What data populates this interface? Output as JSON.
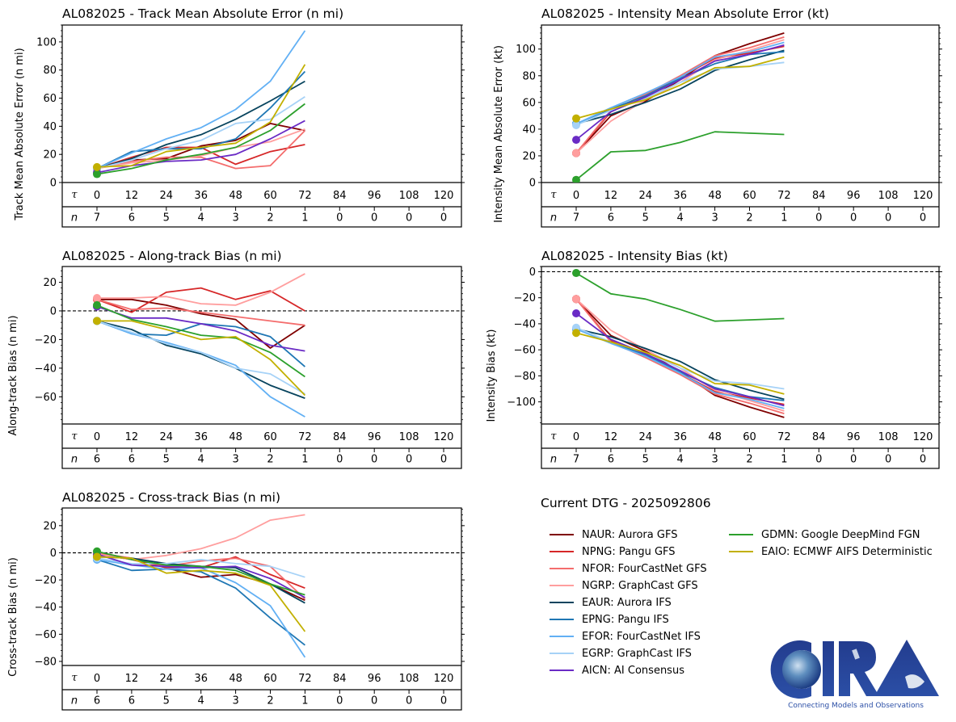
{
  "figure": {
    "storm_id": "AL082025",
    "dtg_label": "Current DTG - 2025092806"
  },
  "colors": {
    "NAUR": "#7f0000",
    "NPNG": "#d62728",
    "NFOR": "#f46d6d",
    "NGRP": "#ff9e9e",
    "EAUR": "#08445e",
    "EPNG": "#1f77b4",
    "EFOR": "#62b0f4",
    "EGRP": "#a6d2f7",
    "AICN": "#6a2bc5",
    "GDMN": "#2ca02c",
    "EAIO": "#c2b000"
  },
  "legend": {
    "items": [
      {
        "id": "NAUR",
        "label": "NAUR: Aurora GFS"
      },
      {
        "id": "NPNG",
        "label": "NPNG: Pangu GFS"
      },
      {
        "id": "NFOR",
        "label": "NFOR: FourCastNet GFS"
      },
      {
        "id": "NGRP",
        "label": "NGRP: GraphCast GFS"
      },
      {
        "id": "EAUR",
        "label": "EAUR: Aurora IFS"
      },
      {
        "id": "EPNG",
        "label": "EPNG: Pangu IFS"
      },
      {
        "id": "EFOR",
        "label": "EFOR: FourCastNet IFS"
      },
      {
        "id": "EGRP",
        "label": "EGRP: GraphCast IFS"
      },
      {
        "id": "AICN",
        "label": "AICN: AI Consensus"
      },
      {
        "id": "GDMN",
        "label": "GDMN: Google DeepMind FGN"
      },
      {
        "id": "EAIO",
        "label": "EAIO: ECMWF AIFS Deterministic"
      }
    ]
  },
  "logo": {
    "text": "CIRA",
    "tagline": "Connecting Models and Observations"
  },
  "chart_data": [
    {
      "id": "track_mae",
      "type": "line",
      "title": "AL082025 - Track Mean Absolute Error (n mi)",
      "ylabel": "Track Mean Absolute Error (n mi)",
      "xlabel": "τ",
      "row2_label": "n",
      "x": [
        0,
        12,
        24,
        36,
        48,
        60,
        72
      ],
      "xticks": [
        0,
        12,
        24,
        36,
        48,
        60,
        72,
        84,
        96,
        108,
        120
      ],
      "n": [
        7,
        6,
        5,
        4,
        3,
        2,
        1,
        0,
        0,
        0,
        0
      ],
      "ylim": [
        0,
        112
      ],
      "yticks": [
        0,
        20,
        40,
        60,
        80,
        100
      ],
      "zero_line": false,
      "series": [
        {
          "name": "NAUR",
          "values": [
            10,
            16,
            17,
            26,
            30,
            42,
            37
          ]
        },
        {
          "name": "NPNG",
          "values": [
            10,
            18,
            25,
            25,
            13,
            22,
            27
          ]
        },
        {
          "name": "NFOR",
          "values": [
            10,
            15,
            18,
            18,
            10,
            12,
            37
          ]
        },
        {
          "name": "NGRP",
          "values": [
            10,
            14,
            16,
            19,
            25,
            29,
            38
          ]
        },
        {
          "name": "EAUR",
          "values": [
            10,
            17,
            27,
            34,
            45,
            58,
            72
          ]
        },
        {
          "name": "EPNG",
          "values": [
            10,
            22,
            24,
            24,
            31,
            53,
            79
          ]
        },
        {
          "name": "EFOR",
          "values": [
            10,
            21,
            31,
            39,
            52,
            72,
            108
          ]
        },
        {
          "name": "EGRP",
          "values": [
            10,
            16,
            24,
            30,
            42,
            45,
            61
          ]
        },
        {
          "name": "AICN",
          "values": [
            7,
            12,
            15,
            16,
            20,
            31,
            44
          ]
        },
        {
          "name": "GDMN",
          "values": [
            6,
            10,
            16,
            20,
            25,
            37,
            56
          ]
        },
        {
          "name": "EAIO",
          "values": [
            11,
            12,
            22,
            25,
            28,
            43,
            84
          ]
        }
      ]
    },
    {
      "id": "intensity_mae",
      "type": "line",
      "title": "AL082025 - Intensity Mean Absolute Error (kt)",
      "ylabel": "Intensity Mean Absolute Error (kt)",
      "xlabel": "τ",
      "row2_label": "n",
      "x": [
        0,
        12,
        24,
        36,
        48,
        60,
        72
      ],
      "xticks": [
        0,
        12,
        24,
        36,
        48,
        60,
        72,
        84,
        96,
        108,
        120
      ],
      "n": [
        7,
        6,
        5,
        4,
        3,
        2,
        1,
        0,
        0,
        0,
        0
      ],
      "ylim": [
        0,
        118
      ],
      "yticks": [
        0,
        20,
        40,
        60,
        80,
        100
      ],
      "zero_line": false,
      "series": [
        {
          "name": "NAUR",
          "values": [
            22,
            50,
            61,
            77,
            95,
            104,
            112
          ]
        },
        {
          "name": "NPNG",
          "values": [
            22,
            53,
            66,
            79,
            93,
            97,
            102
          ]
        },
        {
          "name": "NFOR",
          "values": [
            22,
            54,
            66,
            80,
            95,
            101,
            109
          ]
        },
        {
          "name": "NGRP",
          "values": [
            22,
            46,
            62,
            75,
            92,
            99,
            107
          ]
        },
        {
          "name": "EAUR",
          "values": [
            44,
            51,
            60,
            70,
            84,
            92,
            99
          ]
        },
        {
          "name": "EPNG",
          "values": [
            44,
            55,
            65,
            78,
            89,
            96,
            98
          ]
        },
        {
          "name": "EFOR",
          "values": [
            44,
            56,
            67,
            79,
            94,
            98,
            105
          ]
        },
        {
          "name": "EGRP",
          "values": [
            43,
            54,
            63,
            75,
            85,
            87,
            90
          ]
        },
        {
          "name": "AICN",
          "values": [
            32,
            53,
            64,
            77,
            91,
            96,
            103
          ]
        },
        {
          "name": "GDMN",
          "values": [
            2,
            23,
            24,
            30,
            38,
            37,
            36
          ]
        },
        {
          "name": "EAIO",
          "values": [
            48,
            55,
            62,
            73,
            86,
            87,
            94
          ]
        }
      ]
    },
    {
      "id": "along_track_bias",
      "type": "line",
      "title": "AL082025 - Along-track Bias (n mi)",
      "ylabel": "Along-track Bias (n mi)",
      "xlabel": "τ",
      "row2_label": "n",
      "x": [
        0,
        12,
        24,
        36,
        48,
        60,
        72
      ],
      "xticks": [
        0,
        12,
        24,
        36,
        48,
        60,
        72,
        84,
        96,
        108,
        120
      ],
      "n": [
        6,
        6,
        5,
        4,
        3,
        2,
        1,
        0,
        0,
        0,
        0
      ],
      "ylim": [
        -79,
        31
      ],
      "yticks": [
        -60,
        -40,
        -20,
        0,
        20
      ],
      "zero_line": true,
      "series": [
        {
          "name": "NAUR",
          "values": [
            8,
            8,
            4,
            -2,
            -6,
            -26,
            -10
          ]
        },
        {
          "name": "NPNG",
          "values": [
            8,
            -1,
            13,
            16,
            8,
            14,
            0
          ]
        },
        {
          "name": "NFOR",
          "values": [
            8,
            1,
            2,
            -1,
            -4,
            -7,
            -10
          ]
        },
        {
          "name": "NGRP",
          "values": [
            9,
            9,
            10,
            5,
            4,
            13,
            26
          ]
        },
        {
          "name": "EAUR",
          "values": [
            -7,
            -13,
            -24,
            -30,
            -40,
            -52,
            -61
          ]
        },
        {
          "name": "EPNG",
          "values": [
            -7,
            -16,
            -17,
            -9,
            -11,
            -18,
            -39
          ]
        },
        {
          "name": "EFOR",
          "values": [
            -7,
            -16,
            -22,
            -29,
            -38,
            -60,
            -74
          ]
        },
        {
          "name": "EGRP",
          "values": [
            -7,
            -15,
            -23,
            -29,
            -40,
            -44,
            -58
          ]
        },
        {
          "name": "AICN",
          "values": [
            3,
            -5,
            -5,
            -9,
            -14,
            -24,
            -28
          ]
        },
        {
          "name": "GDMN",
          "values": [
            4,
            -6,
            -11,
            -17,
            -19,
            -29,
            -46
          ]
        },
        {
          "name": "EAIO",
          "values": [
            -7,
            -7,
            -13,
            -20,
            -18,
            -34,
            -59
          ]
        }
      ]
    },
    {
      "id": "intensity_bias",
      "type": "line",
      "title": "AL082025 - Intensity Bias (kt)",
      "ylabel": "Intensity Bias (kt)",
      "xlabel": "τ",
      "row2_label": "n",
      "x": [
        0,
        12,
        24,
        36,
        48,
        60,
        72
      ],
      "xticks": [
        0,
        12,
        24,
        36,
        48,
        60,
        72,
        84,
        96,
        108,
        120
      ],
      "n": [
        7,
        6,
        5,
        4,
        3,
        2,
        1,
        0,
        0,
        0,
        0
      ],
      "ylim": [
        -117,
        4
      ],
      "yticks": [
        -100,
        -80,
        -60,
        -40,
        -20,
        0
      ],
      "zero_line": true,
      "series": [
        {
          "name": "NAUR",
          "values": [
            -21,
            -49,
            -61,
            -77,
            -95,
            -104,
            -112
          ]
        },
        {
          "name": "NPNG",
          "values": [
            -21,
            -53,
            -65,
            -78,
            -92,
            -97,
            -102
          ]
        },
        {
          "name": "NFOR",
          "values": [
            -21,
            -54,
            -66,
            -79,
            -94,
            -101,
            -109
          ]
        },
        {
          "name": "NGRP",
          "values": [
            -21,
            -45,
            -60,
            -74,
            -91,
            -99,
            -107
          ]
        },
        {
          "name": "EAUR",
          "values": [
            -44,
            -50,
            -59,
            -69,
            -83,
            -91,
            -98
          ]
        },
        {
          "name": "EPNG",
          "values": [
            -44,
            -54,
            -64,
            -77,
            -89,
            -96,
            -99
          ]
        },
        {
          "name": "EFOR",
          "values": [
            -44,
            -55,
            -65,
            -78,
            -93,
            -98,
            -105
          ]
        },
        {
          "name": "EGRP",
          "values": [
            -43,
            -54,
            -62,
            -74,
            -84,
            -86,
            -90
          ]
        },
        {
          "name": "AICN",
          "values": [
            -32,
            -52,
            -63,
            -76,
            -90,
            -96,
            -103
          ]
        },
        {
          "name": "GDMN",
          "values": [
            -1,
            -17,
            -21,
            -29,
            -38,
            -37,
            -36
          ]
        },
        {
          "name": "EAIO",
          "values": [
            -47,
            -54,
            -62,
            -72,
            -86,
            -87,
            -94
          ]
        }
      ]
    },
    {
      "id": "cross_track_bias",
      "type": "line",
      "title": "AL082025 - Cross-track Bias (n mi)",
      "ylabel": "Cross-track Bias (n mi)",
      "xlabel": "τ",
      "row2_label": "n",
      "x": [
        0,
        12,
        24,
        36,
        48,
        60,
        72
      ],
      "xticks": [
        0,
        12,
        24,
        36,
        48,
        60,
        72,
        84,
        96,
        108,
        120
      ],
      "n": [
        6,
        6,
        5,
        4,
        3,
        2,
        1,
        0,
        0,
        0,
        0
      ],
      "ylim": [
        -83,
        33
      ],
      "yticks": [
        -80,
        -60,
        -40,
        -20,
        0,
        20
      ],
      "zero_line": true,
      "series": [
        {
          "name": "NAUR",
          "values": [
            -1,
            -4,
            -11,
            -18,
            -16,
            -23,
            -35
          ]
        },
        {
          "name": "NPNG",
          "values": [
            -1,
            -5,
            -11,
            -11,
            -3,
            -16,
            -26
          ]
        },
        {
          "name": "NFOR",
          "values": [
            0,
            -4,
            -10,
            -6,
            -4,
            -10,
            -34
          ]
        },
        {
          "name": "NGRP",
          "values": [
            -1,
            -5,
            -2,
            3,
            11,
            24,
            28
          ]
        },
        {
          "name": "EAUR",
          "values": [
            -3,
            -4,
            -8,
            -10,
            -11,
            -23,
            -37
          ]
        },
        {
          "name": "EPNG",
          "values": [
            -5,
            -13,
            -12,
            -14,
            -26,
            -48,
            -68
          ]
        },
        {
          "name": "EFOR",
          "values": [
            -5,
            -9,
            -12,
            -11,
            -22,
            -39,
            -77
          ]
        },
        {
          "name": "EGRP",
          "values": [
            -4,
            -8,
            -8,
            -5,
            -8,
            -10,
            -18
          ]
        },
        {
          "name": "AICN",
          "values": [
            -1,
            -9,
            -10,
            -11,
            -10,
            -19,
            -33
          ]
        },
        {
          "name": "GDMN",
          "values": [
            1,
            -5,
            -9,
            -10,
            -13,
            -23,
            -31
          ]
        },
        {
          "name": "EAIO",
          "values": [
            -3,
            -4,
            -15,
            -13,
            -15,
            -24,
            -58
          ]
        }
      ]
    }
  ]
}
